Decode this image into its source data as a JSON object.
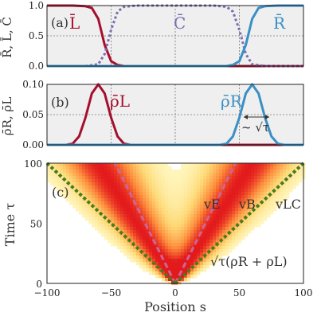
{
  "chart_data": [
    {
      "type": "line",
      "panel_label": "(a)",
      "ylabel": "R̄, L̄, C̄",
      "xlim": [
        -100,
        100
      ],
      "ylim": [
        0,
        1
      ],
      "grid": true,
      "yticks": [
        "0.0",
        "0.5",
        "1.0"
      ],
      "series": [
        {
          "name": "L̄",
          "color": "#a50f2e",
          "style": "solid",
          "x": [
            -100,
            -80,
            -70,
            -65,
            -60,
            -55,
            -50,
            -45,
            -40,
            -30,
            0,
            100
          ],
          "y": [
            1.0,
            1.0,
            0.99,
            0.96,
            0.78,
            0.35,
            0.08,
            0.02,
            0.0,
            0.0,
            0.0,
            0.0
          ]
        },
        {
          "name": "C̄",
          "color": "#7b6cb0",
          "style": "dotted",
          "x": [
            -100,
            -70,
            -60,
            -55,
            -50,
            -45,
            -40,
            -30,
            0,
            30,
            40,
            45,
            50,
            55,
            60,
            70,
            100
          ],
          "y": [
            0.0,
            0.0,
            0.03,
            0.2,
            0.6,
            0.9,
            0.98,
            1.0,
            1.0,
            1.0,
            0.98,
            0.9,
            0.6,
            0.2,
            0.03,
            0.0,
            0.0
          ]
        },
        {
          "name": "R̄",
          "color": "#3a8fc4",
          "style": "solid",
          "x": [
            -100,
            0,
            30,
            40,
            45,
            50,
            55,
            60,
            65,
            70,
            80,
            100
          ],
          "y": [
            0.0,
            0.0,
            0.0,
            0.0,
            0.02,
            0.08,
            0.35,
            0.78,
            0.96,
            0.99,
            1.0,
            1.0
          ]
        }
      ]
    },
    {
      "type": "line",
      "panel_label": "(b)",
      "ylabel": "ρ̄R, ρ̄L",
      "xlim": [
        -100,
        100
      ],
      "ylim": [
        0,
        0.1
      ],
      "grid": true,
      "yticks": [
        "0.00",
        "0.05",
        "0.10"
      ],
      "annotation": "~ √τ",
      "series": [
        {
          "name": "ρ̄L",
          "color": "#a50f2e",
          "style": "solid",
          "x": [
            -100,
            -85,
            -80,
            -75,
            -70,
            -65,
            -60,
            -55,
            -50,
            -45,
            -40,
            -35,
            100
          ],
          "y": [
            0.0,
            0.0,
            0.002,
            0.014,
            0.045,
            0.085,
            0.1,
            0.085,
            0.045,
            0.014,
            0.002,
            0.0,
            0.0
          ]
        },
        {
          "name": "ρ̄R",
          "color": "#3a8fc4",
          "style": "solid",
          "x": [
            -100,
            35,
            40,
            45,
            50,
            55,
            60,
            65,
            70,
            75,
            80,
            85,
            100
          ],
          "y": [
            0.0,
            0.0,
            0.002,
            0.014,
            0.045,
            0.085,
            0.1,
            0.085,
            0.045,
            0.014,
            0.002,
            0.0,
            0.0
          ]
        }
      ]
    },
    {
      "type": "heatmap",
      "panel_label": "(c)",
      "xlabel": "Position s",
      "ylabel": "Time τ",
      "xlim": [
        -100,
        100
      ],
      "ylim": [
        0,
        100
      ],
      "xticks": [
        "−100",
        "−50",
        "0",
        "50",
        "100"
      ],
      "yticks": [
        "0",
        "50",
        "100"
      ],
      "colormap": [
        "#fffccc",
        "#fed976",
        "#fd8d3c",
        "#e31a1c"
      ],
      "heat_velocity": 0.6,
      "annotations": [
        "vE",
        "vB",
        "vLC",
        "√τ(ρR + ρL)"
      ],
      "lines": [
        {
          "name": "vE",
          "color": "#cc6699",
          "style": "dashed",
          "slope": 0.47
        },
        {
          "name": "vLC",
          "color": "#4a7a1f",
          "style": "dotted",
          "slope": 1.0
        }
      ]
    }
  ]
}
